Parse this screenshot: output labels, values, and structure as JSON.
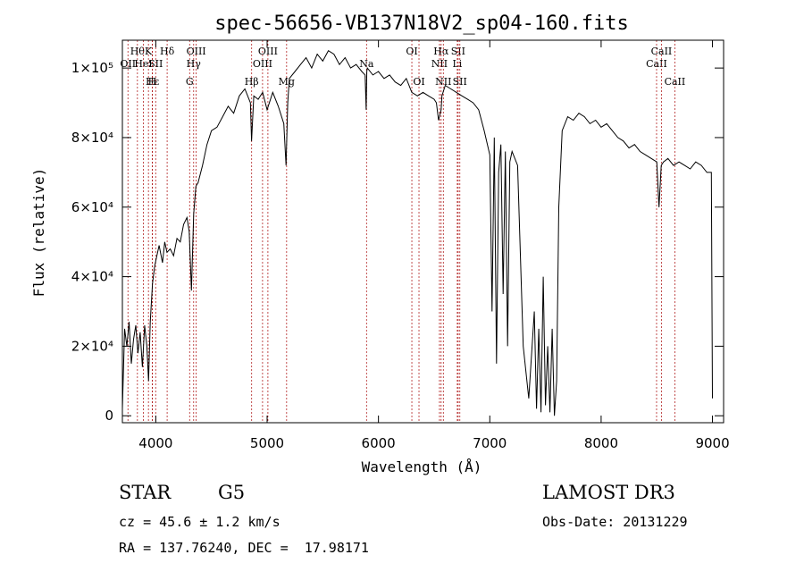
{
  "chart_data": {
    "type": "line",
    "title": "spec-56656-VB137N18V2_sp04-160.fits",
    "xlabel": "Wavelength (Å)",
    "ylabel": "Flux (relative)",
    "xlim": [
      3700,
      9100
    ],
    "ylim": [
      -2000,
      108000
    ],
    "x_ticks": [
      4000,
      5000,
      6000,
      7000,
      8000,
      9000
    ],
    "y_ticks": [
      {
        "value": 0,
        "label": "0"
      },
      {
        "value": 20000,
        "label": "2×10⁴"
      },
      {
        "value": 40000,
        "label": "4×10⁴"
      },
      {
        "value": 60000,
        "label": "6×10⁴"
      },
      {
        "value": 80000,
        "label": "8×10⁴"
      },
      {
        "value": 100000,
        "label": "1×10⁵"
      }
    ],
    "grid": false,
    "line_color": "#000000",
    "marker_color": "#b22222",
    "series": [
      {
        "x": [
          3700,
          3720,
          3740,
          3760,
          3780,
          3800,
          3820,
          3840,
          3860,
          3880,
          3900,
          3920,
          3935,
          3950,
          3970,
          3990,
          4010,
          4030,
          4060,
          4080,
          4100,
          4130,
          4160,
          4190,
          4220,
          4250,
          4280,
          4300,
          4320,
          4340,
          4360,
          4380,
          4420,
          4460,
          4500,
          4550,
          4600,
          4650,
          4700,
          4750,
          4800,
          4850,
          4860,
          4880,
          4920,
          4960,
          5000,
          5050,
          5100,
          5150,
          5170,
          5185,
          5200,
          5250,
          5300,
          5350,
          5400,
          5450,
          5500,
          5550,
          5600,
          5650,
          5700,
          5750,
          5800,
          5850,
          5880,
          5890,
          5895,
          5900,
          5950,
          6000,
          6050,
          6100,
          6150,
          6200,
          6250,
          6300,
          6350,
          6400,
          6450,
          6500,
          6520,
          6540,
          6563,
          6570,
          6600,
          6650,
          6700,
          6750,
          6800,
          6850,
          6900,
          6950,
          7000,
          7020,
          7040,
          7060,
          7080,
          7100,
          7120,
          7140,
          7160,
          7180,
          7200,
          7250,
          7300,
          7350,
          7400,
          7420,
          7440,
          7460,
          7480,
          7500,
          7520,
          7540,
          7560,
          7580,
          7600,
          7620,
          7650,
          7700,
          7750,
          7800,
          7850,
          7900,
          7950,
          8000,
          8050,
          8100,
          8150,
          8200,
          8250,
          8300,
          8350,
          8400,
          8450,
          8500,
          8520,
          8540,
          8560,
          8600,
          8650,
          8700,
          8750,
          8800,
          8850,
          8900,
          8950,
          8990,
          9000
        ],
        "y": [
          2000,
          25000,
          20000,
          27000,
          15000,
          22000,
          26000,
          18000,
          24000,
          14000,
          26000,
          20000,
          10000,
          27000,
          38000,
          43000,
          46000,
          49000,
          44000,
          50000,
          47000,
          48000,
          46000,
          51000,
          50000,
          55000,
          57000,
          53000,
          36000,
          58000,
          66000,
          67000,
          72000,
          78000,
          82000,
          83000,
          86000,
          89000,
          87000,
          92000,
          94000,
          90000,
          79000,
          92000,
          91000,
          93000,
          88000,
          93000,
          89000,
          84000,
          72000,
          90000,
          97000,
          99000,
          101000,
          103000,
          100000,
          104000,
          102000,
          105000,
          104000,
          101000,
          103000,
          100000,
          101000,
          99000,
          98000,
          88000,
          99000,
          100000,
          98000,
          99000,
          97000,
          98000,
          96000,
          95000,
          97000,
          93000,
          92000,
          93000,
          92000,
          91000,
          90000,
          85000,
          88000,
          92000,
          95000,
          94000,
          93000,
          92000,
          91000,
          90000,
          88000,
          82000,
          75000,
          30000,
          80000,
          15000,
          70000,
          78000,
          35000,
          76000,
          20000,
          73000,
          76000,
          72000,
          20000,
          5000,
          30000,
          2000,
          25000,
          1000,
          40000,
          3000,
          20000,
          1000,
          25000,
          0,
          10000,
          60000,
          82000,
          86000,
          85000,
          87000,
          86000,
          84000,
          85000,
          83000,
          84000,
          82000,
          80000,
          79000,
          77000,
          78000,
          76000,
          75000,
          74000,
          73000,
          60000,
          72000,
          73000,
          74000,
          72000,
          73000,
          72000,
          71000,
          73000,
          72000,
          70000,
          70000,
          5000
        ]
      }
    ],
    "line_markers": [
      {
        "wavelength": 3750,
        "label": "OII",
        "row": 1
      },
      {
        "wavelength": 3835,
        "label": "Hθ",
        "row": 0
      },
      {
        "wavelength": 3889,
        "label": "HeI",
        "row": 1
      },
      {
        "wavelength": 3934,
        "label": "K",
        "row": 0
      },
      {
        "wavelength": 3970,
        "label": "Hε",
        "row": 2
      },
      {
        "wavelength": 3999,
        "label": "SII",
        "row": 1
      },
      {
        "wavelength": 3968,
        "label": "H",
        "row": 2
      },
      {
        "wavelength": 4102,
        "label": "Hδ",
        "row": 0
      },
      {
        "wavelength": 4304,
        "label": "G",
        "row": 2
      },
      {
        "wavelength": 4340,
        "label": "Hγ",
        "row": 1
      },
      {
        "wavelength": 4363,
        "label": "OIII",
        "row": 0
      },
      {
        "wavelength": 4861,
        "label": "Hβ",
        "row": 2
      },
      {
        "wavelength": 4959,
        "label": "OIII",
        "row": 1
      },
      {
        "wavelength": 5007,
        "label": "OIII",
        "row": 0
      },
      {
        "wavelength": 5175,
        "label": "Mg",
        "row": 2
      },
      {
        "wavelength": 5893,
        "label": "Na",
        "row": 1
      },
      {
        "wavelength": 6300,
        "label": "OI",
        "row": 0
      },
      {
        "wavelength": 6364,
        "label": "OI",
        "row": 2
      },
      {
        "wavelength": 6548,
        "label": "NII",
        "row": 1
      },
      {
        "wavelength": 6563,
        "label": "Hα",
        "row": 0
      },
      {
        "wavelength": 6583,
        "label": "NII",
        "row": 2
      },
      {
        "wavelength": 6708,
        "label": "Li",
        "row": 1
      },
      {
        "wavelength": 6716,
        "label": "SII",
        "row": 0
      },
      {
        "wavelength": 6731,
        "label": "SII",
        "row": 2
      },
      {
        "wavelength": 8498,
        "label": "CaII",
        "row": 1
      },
      {
        "wavelength": 8542,
        "label": "CaII",
        "row": 0
      },
      {
        "wavelength": 8662,
        "label": "CaII",
        "row": 2
      }
    ]
  },
  "info": {
    "object_class": "STAR",
    "subclass": "G5",
    "survey": "LAMOST DR3",
    "redshift": "cz = 45.6 ± 1.2 km/s",
    "obs_date": "Obs-Date: 20131229",
    "coords": "RA = 137.76240, DEC =  17.98171"
  }
}
